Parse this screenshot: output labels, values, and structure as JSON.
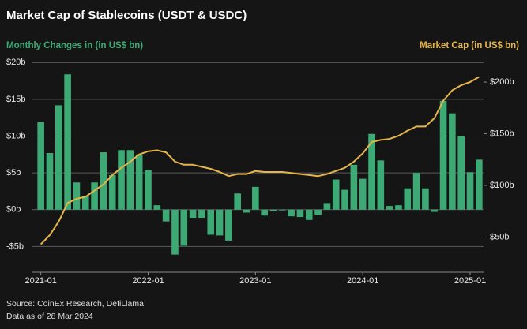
{
  "chart_data": {
    "type": "bar",
    "title": "Market Cap of Stablecoins (USDT & USDC)",
    "source": "Source: CoinEx Research, DefiLlama",
    "note": "Data as of 28 Mar 2024",
    "categories": [
      "2021-01",
      null,
      null,
      null,
      null,
      null,
      null,
      null,
      null,
      null,
      null,
      null,
      "2022-01",
      null,
      null,
      null,
      null,
      null,
      null,
      null,
      null,
      null,
      null,
      null,
      "2023-01",
      null,
      null,
      null,
      null,
      null,
      null,
      null,
      null,
      null,
      null,
      null,
      "2024-01",
      null,
      null,
      null,
      null,
      null,
      null,
      null,
      null,
      null,
      null,
      null,
      "2025-01",
      null
    ],
    "series": [
      {
        "name": "Monthly Changes in (in US$ bn)",
        "type": "bar",
        "color": "#3daa76",
        "values": [
          11.9,
          7.7,
          14.2,
          18.4,
          3.7,
          1.9,
          3.7,
          7.8,
          4.7,
          8.1,
          8.1,
          7.5,
          5.4,
          0.6,
          -1.6,
          -6.1,
          -4.9,
          -1.1,
          -1.1,
          -3.4,
          -3.5,
          -4.2,
          2.2,
          -0.4,
          3.1,
          -0.8,
          -0.2,
          -0.1,
          -0.9,
          -1.0,
          -1.4,
          -0.7,
          0.9,
          4.1,
          2.7,
          6.1,
          4.2,
          10.3,
          6.7,
          0.5,
          0.6,
          2.9,
          5.0,
          2.9,
          -0.3,
          14.8,
          13.1,
          10.0,
          5.1,
          6.8
        ]
      },
      {
        "name": "Market Cap (in US$ bn)",
        "type": "line",
        "axis": "y2",
        "color": "#e6b548",
        "values": [
          43,
          52,
          65,
          83,
          87,
          89,
          95,
          101,
          110,
          117,
          123,
          130,
          133,
          134,
          132,
          123,
          120,
          120,
          118,
          116,
          113,
          109,
          111,
          111,
          114,
          113,
          113,
          113,
          112,
          111,
          110,
          109,
          111,
          114,
          117,
          123,
          131,
          142,
          144,
          145,
          148,
          153,
          157,
          157,
          165,
          182,
          192,
          197,
          200,
          205
        ]
      }
    ],
    "ylim": [
      -8.5,
      21
    ],
    "yticks": [
      {
        "value": -5,
        "label": "-$5b"
      },
      {
        "value": 0,
        "label": "$0b"
      },
      {
        "value": 5,
        "label": "$5b"
      },
      {
        "value": 10,
        "label": "$10b"
      },
      {
        "value": 15,
        "label": "$15b"
      },
      {
        "value": 20,
        "label": "$20b"
      }
    ],
    "y2lim": [
      16,
      226
    ],
    "y2ticks": [
      {
        "value": 50,
        "label": "$50b"
      },
      {
        "value": 100,
        "label": "$100b"
      },
      {
        "value": 150,
        "label": "$150b"
      },
      {
        "value": 200,
        "label": "$200b"
      }
    ],
    "grid": true
  }
}
